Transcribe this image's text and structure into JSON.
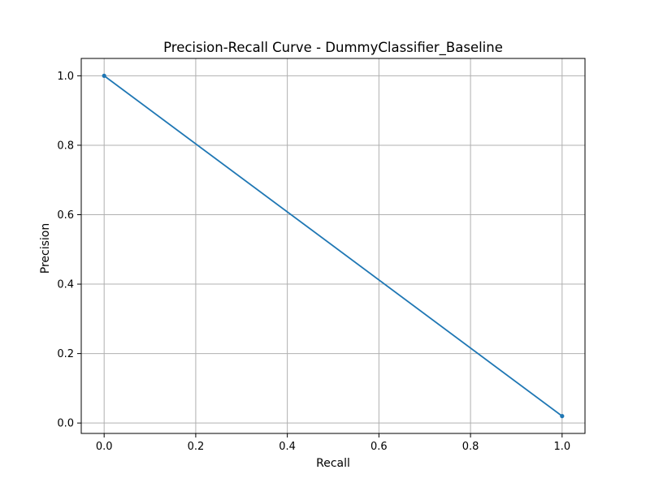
{
  "chart_data": {
    "type": "line",
    "title": "Precision-Recall Curve - DummyClassifier_Baseline",
    "xlabel": "Recall",
    "ylabel": "Precision",
    "xlim": [
      -0.05,
      1.05
    ],
    "ylim": [
      -0.03,
      1.05
    ],
    "xticks": [
      0.0,
      0.2,
      0.4,
      0.6,
      0.8,
      1.0
    ],
    "xtick_labels": [
      "0.0",
      "0.2",
      "0.4",
      "0.6",
      "0.8",
      "1.0"
    ],
    "yticks": [
      0.0,
      0.2,
      0.4,
      0.6,
      0.8,
      1.0
    ],
    "ytick_labels": [
      "0.0",
      "0.2",
      "0.4",
      "0.6",
      "0.8",
      "1.0"
    ],
    "grid": true,
    "series": [
      {
        "x": [
          0.0,
          1.0
        ],
        "y": [
          1.0,
          0.02
        ],
        "color": "#1f77b4",
        "marker": "circle"
      }
    ]
  }
}
